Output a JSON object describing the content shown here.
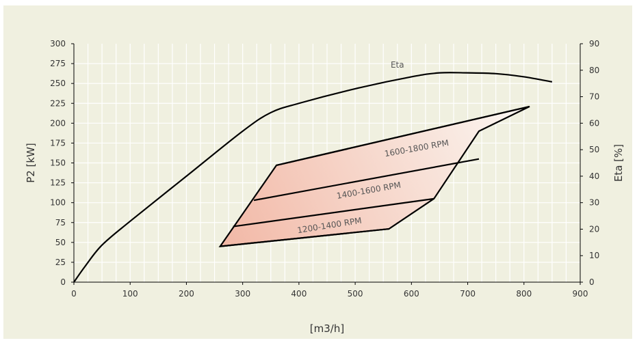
{
  "chart_data": {
    "type": "line",
    "xlabel": "[m3/h]",
    "ylabel_left": "P2 [kW]",
    "ylabel_right": "Eta [%]",
    "xlim": [
      0,
      900
    ],
    "ylim_left": [
      0,
      300
    ],
    "ylim_right": [
      0,
      90
    ],
    "x_ticks": [
      0,
      100,
      200,
      300,
      400,
      500,
      600,
      700,
      800,
      900
    ],
    "y_ticks_left": [
      0,
      25,
      50,
      75,
      100,
      125,
      150,
      175,
      200,
      225,
      250,
      275,
      300
    ],
    "y_ticks_right": [
      0,
      10,
      20,
      30,
      40,
      50,
      60,
      70,
      80,
      90
    ],
    "grid": true,
    "colors": {
      "background": "#f0f0e0",
      "plot": "#f0f0e0",
      "grid": "#ffffff",
      "line": "#000000",
      "text": "#333333",
      "fill_low": "#f2b8a6",
      "fill_high": "#fbf7f2"
    },
    "series": [
      {
        "name": "Eta",
        "axis": "right",
        "x": [
          0,
          20,
          50,
          100,
          200,
          300,
          350,
          400,
          500,
          600,
          650,
          700,
          750,
          800,
          850
        ],
        "y": [
          0,
          6,
          14,
          23,
          40,
          57,
          64,
          67.5,
          73,
          77.5,
          79,
          79,
          78.7,
          77.5,
          75.6
        ]
      }
    ],
    "operating_region": {
      "outline": [
        [
          260,
          45
        ],
        [
          360,
          147
        ],
        [
          810,
          221
        ],
        [
          720,
          190
        ],
        [
          640,
          105
        ],
        [
          560,
          67
        ]
      ],
      "speed_lines": [
        {
          "x": [
            260,
            560
          ],
          "y": [
            45,
            67
          ]
        },
        {
          "x": [
            283,
            640
          ],
          "y": [
            70,
            105
          ]
        },
        {
          "x": [
            320,
            720
          ],
          "y": [
            103,
            155
          ]
        },
        {
          "x": [
            360,
            810
          ],
          "y": [
            147,
            221
          ]
        }
      ]
    },
    "annotations": [
      {
        "text": "Eta",
        "x": 575,
        "y": 270
      },
      {
        "text": "1600-1800 RPM",
        "x": 610,
        "y": 165,
        "angle": -10
      },
      {
        "text": "1400-1600 RPM",
        "x": 525,
        "y": 112,
        "angle": -10
      },
      {
        "text": "1200-1400 RPM",
        "x": 455,
        "y": 68,
        "angle": -9
      }
    ]
  }
}
